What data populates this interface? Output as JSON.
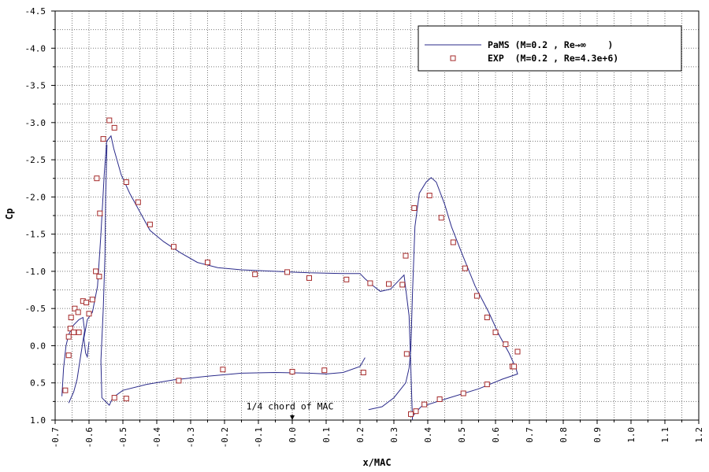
{
  "chart_data": {
    "type": "line",
    "xlabel": "x/MAC",
    "ylabel": "Cp",
    "xlim": [
      -0.7,
      1.2
    ],
    "ylim": [
      1.0,
      -4.5
    ],
    "y_inverted": true,
    "grid": true,
    "legend_position": "top-right",
    "xticks": [
      -0.7,
      -0.6,
      -0.5,
      -0.4,
      -0.3,
      -0.2,
      -0.1,
      0.0,
      0.1,
      0.2,
      0.3,
      0.4,
      0.5,
      0.6,
      0.7,
      0.8,
      0.9,
      1.0,
      1.1,
      1.2
    ],
    "xtick_labels": [
      "-0.7",
      "-0.6",
      "-0.5",
      "-0.4",
      "-0.3",
      "-0.2",
      "-0.1",
      "0.0",
      "0.1",
      "0.2",
      "0.3",
      "0.4",
      "0.5",
      "0.6",
      "0.7",
      "0.8",
      "0.9",
      "1.0",
      "1.1",
      "1.2"
    ],
    "yticks": [
      -4.5,
      -4.0,
      -3.5,
      -3.0,
      -2.5,
      -2.0,
      -1.5,
      -1.0,
      -0.5,
      0.0,
      0.5,
      1.0
    ],
    "ytick_labels": [
      "-4.5",
      "-4.0",
      "-3.5",
      "-3.0",
      "-2.5",
      "-2.0",
      "-1.5",
      "-1.0",
      "-0.5",
      "0.0",
      "0.5",
      "1.0"
    ],
    "series": [
      {
        "name": "PaMS (M=0.2 , Re→∞    )",
        "kind": "line",
        "color": "#2a2a8a",
        "segments": [
          [
            [
              -0.68,
              0.68
            ],
            [
              -0.675,
              0.3
            ],
            [
              -0.668,
              0.0
            ],
            [
              -0.66,
              -0.15
            ],
            [
              -0.645,
              -0.28
            ],
            [
              -0.63,
              -0.35
            ],
            [
              -0.618,
              -0.38
            ],
            [
              -0.613,
              -0.2
            ],
            [
              -0.625,
              0.15
            ],
            [
              -0.635,
              0.45
            ],
            [
              -0.645,
              0.62
            ],
            [
              -0.66,
              0.77
            ]
          ],
          [
            [
              -0.6,
              -0.05
            ],
            [
              -0.605,
              0.15
            ],
            [
              -0.61,
              0.1
            ],
            [
              -0.615,
              -0.1
            ],
            [
              -0.605,
              -0.35
            ],
            [
              -0.59,
              -0.45
            ],
            [
              -0.575,
              -0.8
            ],
            [
              -0.565,
              -1.5
            ],
            [
              -0.555,
              -2.3
            ],
            [
              -0.548,
              -2.75
            ],
            [
              -0.535,
              -2.82
            ],
            [
              -0.527,
              -2.65
            ],
            [
              -0.505,
              -2.3
            ],
            [
              -0.48,
              -2.05
            ],
            [
              -0.45,
              -1.8
            ],
            [
              -0.42,
              -1.55
            ],
            [
              -0.38,
              -1.4
            ],
            [
              -0.33,
              -1.25
            ],
            [
              -0.28,
              -1.12
            ],
            [
              -0.22,
              -1.05
            ],
            [
              -0.15,
              -1.02
            ],
            [
              -0.05,
              -1.0
            ],
            [
              0.05,
              -0.98
            ],
            [
              0.15,
              -0.97
            ],
            [
              0.2,
              -0.97
            ],
            [
              0.215,
              -0.9
            ],
            [
              0.24,
              -0.8
            ],
            [
              0.26,
              -0.73
            ],
            [
              0.29,
              -0.76
            ],
            [
              0.33,
              -0.95
            ],
            [
              0.345,
              -0.4
            ],
            [
              0.35,
              0.3
            ],
            [
              0.355,
              1.0
            ]
          ],
          [
            [
              0.215,
              0.16
            ],
            [
              0.2,
              0.28
            ],
            [
              0.15,
              0.36
            ],
            [
              0.1,
              0.38
            ],
            [
              0.05,
              0.37
            ],
            [
              -0.05,
              0.36
            ],
            [
              -0.15,
              0.37
            ],
            [
              -0.25,
              0.41
            ],
            [
              -0.35,
              0.46
            ],
            [
              -0.43,
              0.52
            ],
            [
              -0.5,
              0.6
            ],
            [
              -0.53,
              0.7
            ],
            [
              -0.54,
              0.8
            ],
            [
              -0.562,
              0.7
            ],
            [
              -0.565,
              0.2
            ],
            [
              -0.558,
              -0.5
            ],
            [
              -0.553,
              -1.2
            ],
            [
              -0.551,
              -2.0
            ],
            [
              -0.547,
              -2.7
            ]
          ],
          [
            [
              0.225,
              0.86
            ],
            [
              0.265,
              0.82
            ],
            [
              0.3,
              0.7
            ],
            [
              0.335,
              0.5
            ],
            [
              0.345,
              0.3
            ],
            [
              0.35,
              0.05
            ],
            [
              0.355,
              -0.7
            ],
            [
              0.362,
              -1.6
            ],
            [
              0.375,
              -2.05
            ],
            [
              0.395,
              -2.2
            ],
            [
              0.41,
              -2.26
            ],
            [
              0.425,
              -2.2
            ],
            [
              0.45,
              -1.9
            ],
            [
              0.47,
              -1.6
            ],
            [
              0.5,
              -1.25
            ],
            [
              0.54,
              -0.8
            ],
            [
              0.58,
              -0.45
            ],
            [
              0.61,
              -0.15
            ],
            [
              0.64,
              0.1
            ],
            [
              0.66,
              0.3
            ],
            [
              0.665,
              0.38
            ],
            [
              0.62,
              0.45
            ],
            [
              0.55,
              0.58
            ],
            [
              0.45,
              0.72
            ],
            [
              0.38,
              0.82
            ],
            [
              0.355,
              0.95
            ]
          ]
        ]
      },
      {
        "name": "EXP  (M=0.2 , Re=4.3e+6)",
        "kind": "scatter",
        "color": "#a52a2a",
        "points": [
          [
            -0.67,
            0.6
          ],
          [
            -0.66,
            0.13
          ],
          [
            -0.66,
            -0.12
          ],
          [
            -0.655,
            -0.23
          ],
          [
            -0.653,
            -0.38
          ],
          [
            -0.645,
            -0.18
          ],
          [
            -0.642,
            -0.5
          ],
          [
            -0.632,
            -0.45
          ],
          [
            -0.63,
            -0.18
          ],
          [
            -0.618,
            -0.6
          ],
          [
            -0.608,
            -0.58
          ],
          [
            -0.6,
            -0.43
          ],
          [
            -0.59,
            -0.62
          ],
          [
            -0.58,
            -1.0
          ],
          [
            -0.577,
            -2.25
          ],
          [
            -0.57,
            -0.93
          ],
          [
            -0.568,
            -1.78
          ],
          [
            -0.558,
            -2.78
          ],
          [
            -0.54,
            -3.03
          ],
          [
            -0.525,
            -2.93
          ],
          [
            -0.49,
            -2.2
          ],
          [
            -0.455,
            -1.93
          ],
          [
            -0.42,
            -1.63
          ],
          [
            -0.35,
            -1.33
          ],
          [
            -0.25,
            -1.12
          ],
          [
            -0.11,
            -0.96
          ],
          [
            -0.015,
            -0.99
          ],
          [
            0.05,
            -0.91
          ],
          [
            0.16,
            -0.89
          ],
          [
            0.23,
            -0.84
          ],
          [
            0.285,
            -0.83
          ],
          [
            0.325,
            -0.82
          ],
          [
            0.335,
            -1.21
          ],
          [
            0.338,
            0.11
          ],
          [
            0.36,
            -1.85
          ],
          [
            0.405,
            -2.02
          ],
          [
            0.44,
            -1.72
          ],
          [
            0.475,
            -1.39
          ],
          [
            0.51,
            -1.04
          ],
          [
            0.545,
            -0.67
          ],
          [
            0.575,
            -0.38
          ],
          [
            0.6,
            -0.18
          ],
          [
            0.63,
            -0.02
          ],
          [
            0.65,
            0.28
          ],
          [
            0.665,
            0.08
          ],
          [
            0.655,
            0.28
          ],
          [
            0.575,
            0.52
          ],
          [
            0.505,
            0.64
          ],
          [
            0.435,
            0.72
          ],
          [
            0.39,
            0.79
          ],
          [
            0.365,
            0.88
          ],
          [
            0.35,
            0.92
          ],
          [
            0.21,
            0.36
          ],
          [
            0.0,
            0.35
          ],
          [
            0.095,
            0.33
          ],
          [
            -0.205,
            0.32
          ],
          [
            -0.335,
            0.47
          ],
          [
            -0.49,
            0.71
          ],
          [
            -0.525,
            0.7
          ]
        ]
      }
    ],
    "annotations": [
      {
        "text": "1/4 chord of MAC",
        "x": 0.0,
        "y": 0.9
      }
    ]
  },
  "colors": {
    "line": "#2a2a8a",
    "marker": "#a52a2a",
    "grid": "#7a7a7a"
  }
}
